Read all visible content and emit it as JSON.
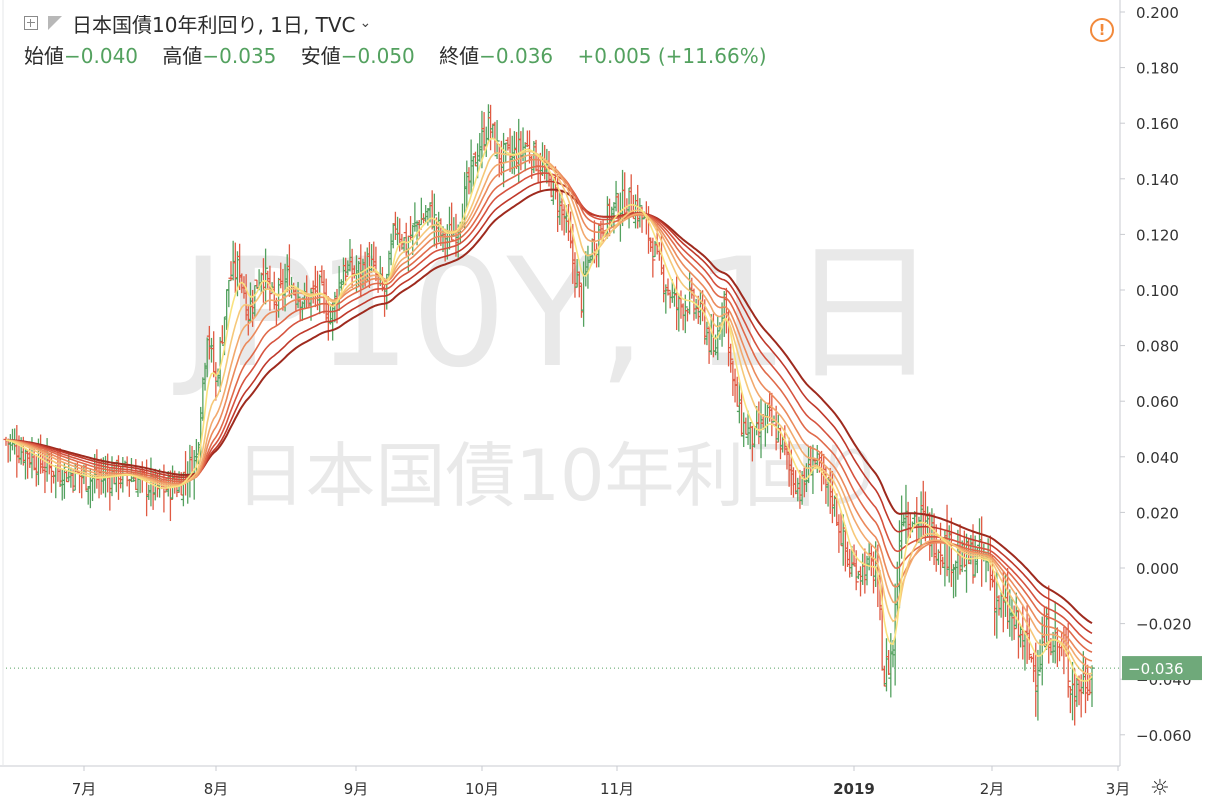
{
  "header": {
    "title": "日本国債10年利回り, 1日, TVC",
    "ohlc": [
      {
        "label": "始値",
        "value": "−0.040"
      },
      {
        "label": "高値",
        "value": "−0.035"
      },
      {
        "label": "安値",
        "value": "−0.050"
      },
      {
        "label": "終値",
        "value": "−0.036"
      }
    ],
    "change": "+0.005 (+11.66%)"
  },
  "watermark": {
    "symbol": "JP10Y, 1日",
    "name": "日本国債10年利回り"
  },
  "price_tag": "−0.036",
  "colors": {
    "up": "#53a15f",
    "down": "#e05a43",
    "ribbon": [
      "#9e2a1e",
      "#c0392b",
      "#d6533f",
      "#e06a4a",
      "#eb8a5c",
      "#f2a96e",
      "#f6c879",
      "#f9e27f"
    ]
  },
  "chart_data": {
    "type": "ohlc",
    "ylim": [
      -0.068,
      0.205
    ],
    "y_ticks": [
      "0.200",
      "0.180",
      "0.160",
      "0.140",
      "0.120",
      "0.100",
      "0.080",
      "0.060",
      "0.040",
      "0.020",
      "0.000",
      "−0.020",
      "−0.040",
      "−0.060"
    ],
    "x_ticks": [
      "7月",
      "8月",
      "9月",
      "10月",
      "11月",
      "2019",
      "2月",
      "3月"
    ],
    "last_value": -0.036,
    "close_path": [
      [
        0,
        0.046
      ],
      [
        20,
        0.036
      ],
      [
        40,
        0.032
      ],
      [
        55,
        0.034
      ],
      [
        70,
        0.028
      ],
      [
        80,
        0.03
      ],
      [
        88,
        0.04
      ],
      [
        93,
        0.086
      ],
      [
        97,
        0.066
      ],
      [
        103,
        0.104
      ],
      [
        108,
        0.108
      ],
      [
        112,
        0.092
      ],
      [
        118,
        0.108
      ],
      [
        124,
        0.094
      ],
      [
        130,
        0.104
      ],
      [
        138,
        0.096
      ],
      [
        145,
        0.1
      ],
      [
        150,
        0.09
      ],
      [
        156,
        0.108
      ],
      [
        162,
        0.106
      ],
      [
        168,
        0.11
      ],
      [
        175,
        0.098
      ],
      [
        180,
        0.124
      ],
      [
        185,
        0.116
      ],
      [
        190,
        0.124
      ],
      [
        196,
        0.128
      ],
      [
        202,
        0.118
      ],
      [
        208,
        0.122
      ],
      [
        213,
        0.136
      ],
      [
        218,
        0.15
      ],
      [
        223,
        0.16
      ],
      [
        228,
        0.148
      ],
      [
        234,
        0.148
      ],
      [
        240,
        0.152
      ],
      [
        246,
        0.146
      ],
      [
        252,
        0.138
      ],
      [
        258,
        0.126
      ],
      [
        262,
        0.11
      ],
      [
        266,
        0.096
      ],
      [
        270,
        0.114
      ],
      [
        276,
        0.124
      ],
      [
        282,
        0.13
      ],
      [
        288,
        0.132
      ],
      [
        293,
        0.128
      ],
      [
        298,
        0.118
      ],
      [
        304,
        0.104
      ],
      [
        310,
        0.094
      ],
      [
        316,
        0.096
      ],
      [
        322,
        0.09
      ],
      [
        327,
        0.076
      ],
      [
        332,
        0.098
      ],
      [
        336,
        0.066
      ],
      [
        340,
        0.052
      ],
      [
        346,
        0.046
      ],
      [
        352,
        0.054
      ],
      [
        358,
        0.046
      ],
      [
        363,
        0.034
      ],
      [
        368,
        0.028
      ],
      [
        373,
        0.04
      ],
      [
        378,
        0.03
      ],
      [
        382,
        0.026
      ],
      [
        386,
        0.012
      ],
      [
        390,
        0.0
      ],
      [
        396,
        0.0
      ],
      [
        402,
        0.0
      ],
      [
        406,
        -0.04
      ],
      [
        410,
        -0.028
      ],
      [
        414,
        0.022
      ],
      [
        418,
        0.02
      ],
      [
        424,
        0.016
      ],
      [
        430,
        0.01
      ],
      [
        436,
        0.006
      ],
      [
        442,
        0.002
      ],
      [
        448,
        0.004
      ],
      [
        454,
        0.002
      ],
      [
        458,
        -0.012
      ],
      [
        464,
        -0.018
      ],
      [
        470,
        -0.026
      ],
      [
        476,
        -0.036
      ],
      [
        482,
        -0.022
      ],
      [
        488,
        -0.03
      ],
      [
        494,
        -0.044
      ],
      [
        500,
        -0.04
      ],
      [
        502,
        -0.036
      ]
    ],
    "ema_periods": [
      30,
      25,
      20,
      16,
      12,
      9,
      6,
      3
    ]
  }
}
